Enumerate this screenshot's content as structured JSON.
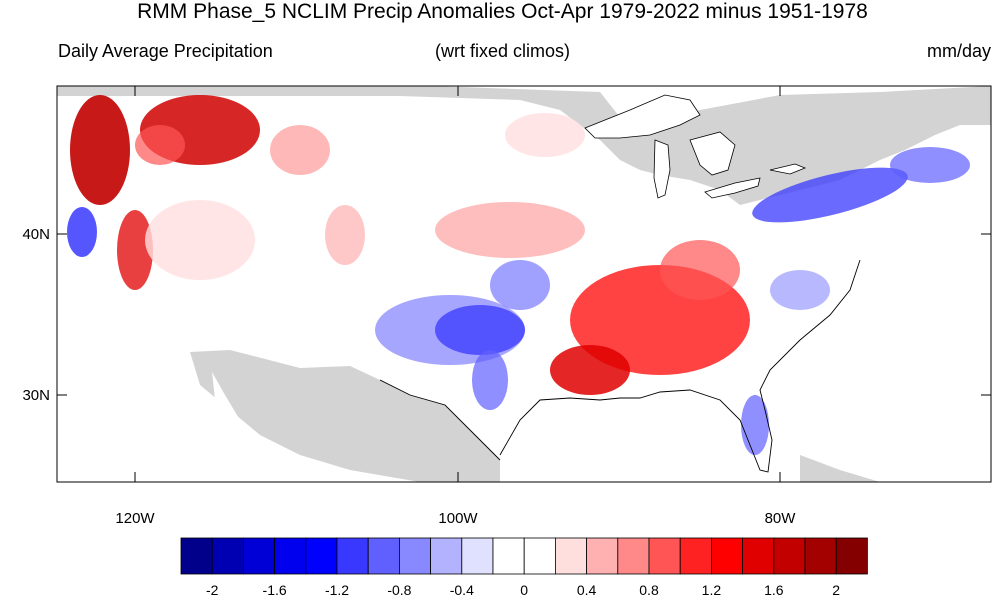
{
  "title": "RMM Phase_5 NCLIM Precip Anomalies Oct-Apr 1979-2022 minus 1951-1978",
  "subtitle_left": "Daily Average Precipitation",
  "subtitle_center": "(wrt fixed climos)",
  "subtitle_right": "mm/day",
  "lat_labels": [
    "40N",
    "30N"
  ],
  "lon_labels": [
    "120W",
    "100W",
    "80W"
  ],
  "colorbar": {
    "colors": [
      "#00008b",
      "#0000b3",
      "#0000d6",
      "#0000ee",
      "#0000ff",
      "#3838ff",
      "#6060ff",
      "#8888ff",
      "#b2b2ff",
      "#e0e0ff",
      "#ffffff",
      "#ffffff",
      "#ffdede",
      "#ffb0b0",
      "#ff8888",
      "#ff5555",
      "#ff2222",
      "#ff0000",
      "#e00000",
      "#c20000",
      "#a30000",
      "#840000"
    ],
    "tick_labels": [
      "-2",
      "-1.6",
      "-1.2",
      "-0.8",
      "-0.4",
      "0",
      "0.4",
      "0.8",
      "1.2",
      "1.6",
      "2"
    ]
  },
  "land_color": "#d3d3d3"
}
